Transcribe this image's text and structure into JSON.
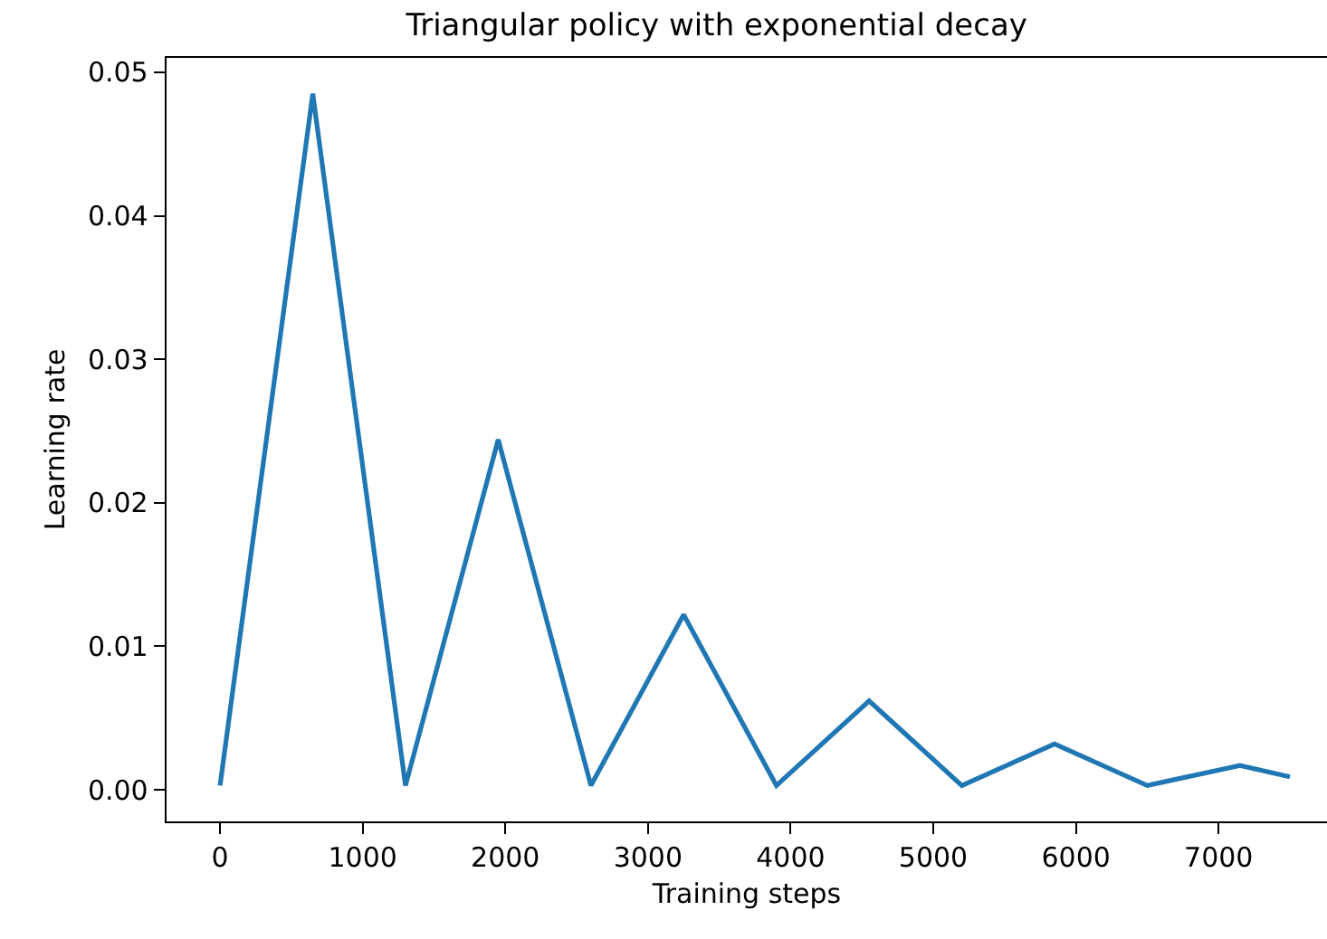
{
  "chart_data": {
    "type": "line",
    "title": "Triangular policy with exponential decay",
    "xlabel": "Training steps",
    "ylabel": "Learning rate",
    "x": [
      0,
      650,
      1300,
      1950,
      2600,
      3250,
      3900,
      4550,
      5200,
      5850,
      6500,
      7150,
      7500
    ],
    "series": [
      {
        "color": "#1f77b4",
        "values": [
          0.0003,
          0.0485,
          0.0003,
          0.0244,
          0.0003,
          0.0122,
          0.0003,
          0.0062,
          0.0003,
          0.0032,
          0.0003,
          0.0017,
          0.0009
        ]
      }
    ],
    "xlim": [
      -375,
      7760
    ],
    "xticks": [
      0,
      1000,
      2000,
      3000,
      4000,
      5000,
      6000,
      7000
    ],
    "ylim": [
      -0.0022,
      0.051
    ],
    "yticks": [
      {
        "value": 0,
        "label": "0.00"
      },
      {
        "value": 0.01,
        "label": "0.01"
      },
      {
        "value": 0.02,
        "label": "0.02"
      },
      {
        "value": 0.03,
        "label": "0.03"
      },
      {
        "value": 0.04,
        "label": "0.04"
      },
      {
        "value": 0.05,
        "label": "0.05"
      }
    ],
    "grid": false,
    "marker": "none",
    "line_style": "solid"
  }
}
